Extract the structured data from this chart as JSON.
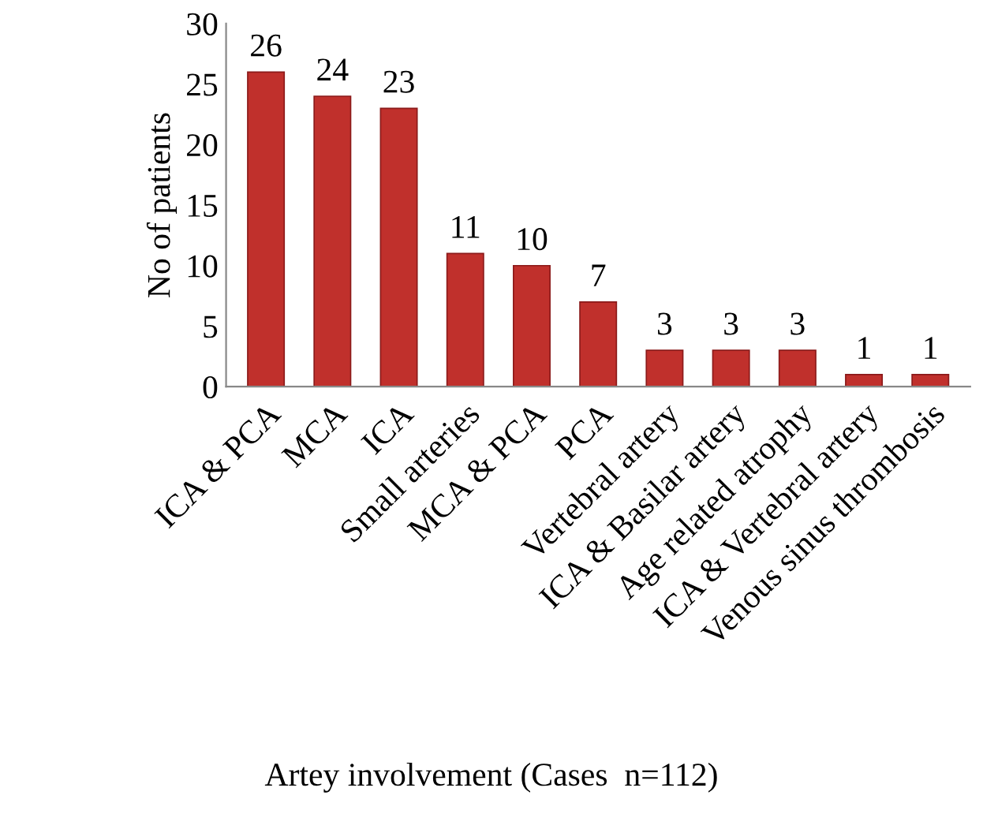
{
  "chart_data": {
    "type": "bar",
    "ylabel": "No of patients",
    "xlabel": "Artey involvement (Cases  n=112)",
    "categories": [
      "ICA & PCA",
      "MCA",
      "ICA",
      "Small arteries",
      "MCA & PCA",
      "PCA",
      "Vertebral artery",
      "ICA & Basilar artery",
      "Age related atrophy",
      "ICA & Vertebral artery",
      "Venous sinus thrombosis"
    ],
    "values": [
      26,
      24,
      23,
      11,
      10,
      7,
      3,
      3,
      3,
      1,
      1
    ],
    "color": "#c0302c",
    "ylim": [
      0,
      30
    ],
    "yticks": [
      0,
      5,
      10,
      15,
      20,
      25,
      30
    ],
    "data_labels": true,
    "grid": false,
    "legend": false
  }
}
